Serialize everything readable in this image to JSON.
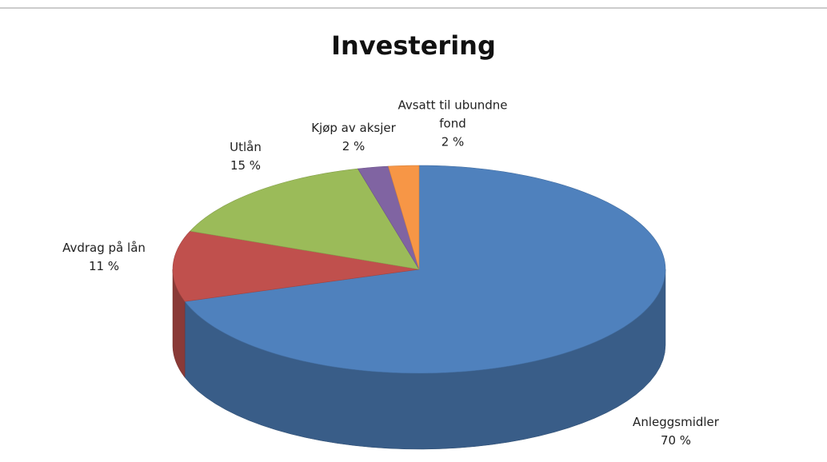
{
  "chart_data": {
    "type": "pie",
    "title": "Investering",
    "categories": [
      "Anleggsmidler",
      "Avdrag på lån",
      "Utlån",
      "Kjøp av aksjer",
      "Avsatt til ubundne fond"
    ],
    "values": [
      70,
      11,
      15,
      2,
      2
    ],
    "value_labels": [
      "70 %",
      "11 %",
      "15 %",
      "2 %",
      "2 %"
    ],
    "colors": [
      "#4f81bd",
      "#c0504d",
      "#9bbb59",
      "#8064a2",
      "#f79646"
    ]
  }
}
